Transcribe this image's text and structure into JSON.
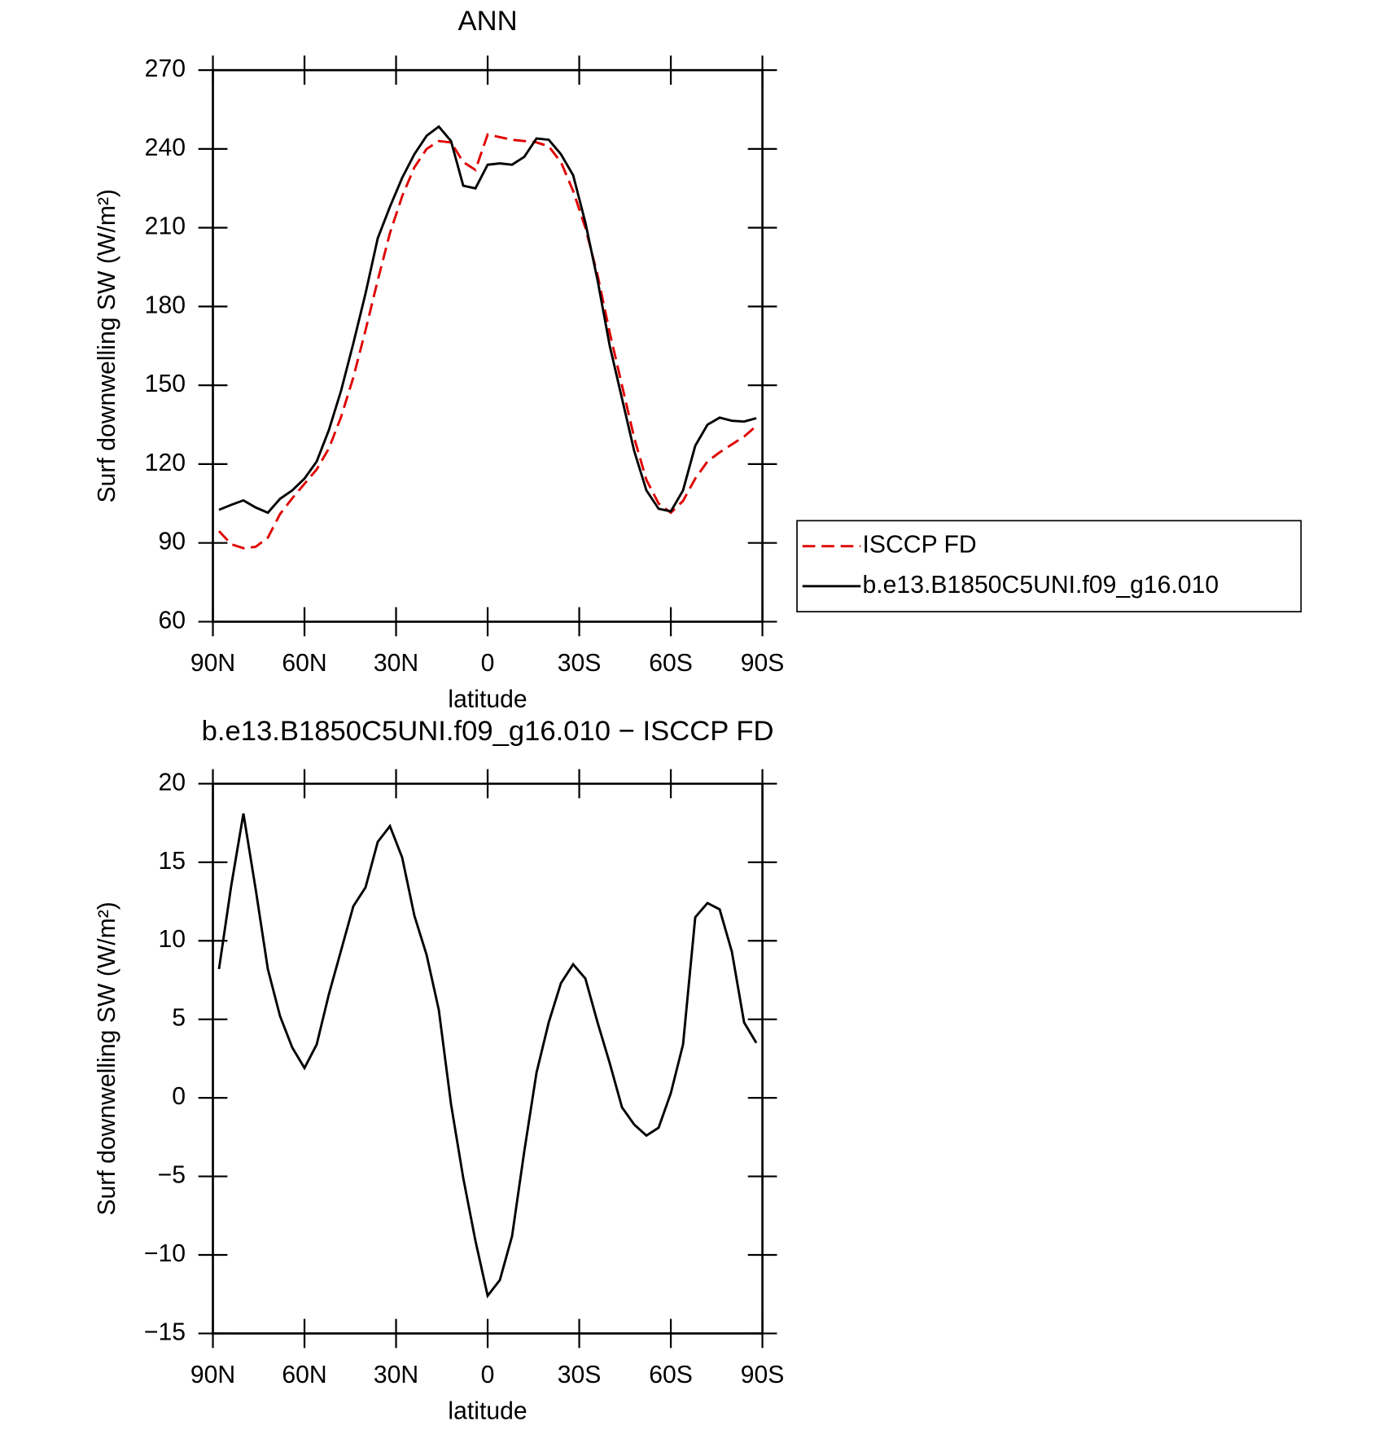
{
  "chart_data": [
    {
      "type": "line",
      "title": "ANN",
      "xlabel": "latitude",
      "ylabel": "Surf downwelling SW (W/m²)",
      "x": [
        88,
        84,
        80,
        76,
        72,
        68,
        64,
        60,
        56,
        52,
        48,
        44,
        40,
        36,
        32,
        28,
        24,
        20,
        16,
        12,
        8,
        4,
        0,
        -4,
        -8,
        -12,
        -16,
        -20,
        -24,
        -28,
        -32,
        -36,
        -40,
        -44,
        -48,
        -52,
        -56,
        -60,
        -64,
        -68,
        -72,
        -76,
        -80,
        -84,
        -88
      ],
      "series": [
        {
          "name": "ISCCP FD",
          "color": "#e00000",
          "style": "dashed",
          "values": [
            94.5,
            89.5,
            88,
            88.5,
            92,
            101,
            107,
            112.5,
            118,
            126,
            138,
            153,
            171,
            190,
            208,
            222,
            233,
            240,
            243,
            242.5,
            235,
            232,
            245.5,
            244.5,
            243.5,
            243,
            242.5,
            241,
            235,
            224,
            210,
            192,
            170,
            150,
            130,
            114,
            105,
            101.5,
            106,
            114.5,
            121,
            124.5,
            127.5,
            130.5,
            134.5
          ]
        },
        {
          "name": "b.e13.B1850C5UNI.f09_g16.010",
          "color": "#000000",
          "style": "solid",
          "values": [
            102.6,
            104.5,
            106.2,
            103.5,
            101.5,
            106.8,
            110,
            114.5,
            121,
            133,
            148,
            166,
            185,
            206,
            218,
            229,
            238,
            245,
            248.5,
            243,
            226,
            225,
            234,
            234.5,
            234,
            237,
            244,
            243.5,
            238,
            230,
            212,
            190,
            165,
            145,
            125,
            110,
            103,
            102,
            110,
            127,
            135,
            137.7,
            136.5,
            136.2,
            137.5
          ]
        }
      ],
      "xlim": [
        90,
        -90
      ],
      "xticks": [
        {
          "value": 90,
          "label": "90N"
        },
        {
          "value": 60,
          "label": "60N"
        },
        {
          "value": 30,
          "label": "30N"
        },
        0,
        {
          "value": -30,
          "label": "30S"
        },
        {
          "value": -60,
          "label": "60S"
        },
        {
          "value": -90,
          "label": "90S"
        }
      ],
      "ylim": [
        60,
        270
      ],
      "yticks": [
        60,
        90,
        120,
        150,
        180,
        210,
        240,
        270
      ],
      "legend": "right"
    },
    {
      "type": "line",
      "title": "b.e13.B1850C5UNI.f09_g16.010 − ISCCP FD",
      "xlabel": "latitude",
      "ylabel": "Surf downwelling SW (W/m²)",
      "x": [
        88,
        84,
        80,
        76,
        72,
        68,
        64,
        60,
        56,
        52,
        48,
        44,
        40,
        36,
        32,
        28,
        24,
        20,
        16,
        12,
        8,
        4,
        0,
        -4,
        -8,
        -12,
        -16,
        -20,
        -24,
        -28,
        -32,
        -36,
        -40,
        -44,
        -48,
        -52,
        -56,
        -60,
        -64,
        -68,
        -72,
        -76,
        -80,
        -84,
        -88
      ],
      "series": [
        {
          "color": "#000000",
          "style": "solid",
          "values": [
            8.2,
            13.5,
            18.1,
            13.3,
            8.2,
            5.2,
            3.2,
            1.9,
            3.4,
            6.6,
            9.4,
            12.2,
            13.4,
            16.3,
            17.3,
            15.3,
            11.6,
            9.1,
            5.6,
            -0.4,
            -5.1,
            -9.1,
            -12.6,
            -11.6,
            -8.8,
            -3.4,
            1.6,
            4.8,
            7.3,
            8.5,
            7.6,
            4.8,
            2.2,
            -0.6,
            -1.7,
            -2.4,
            -1.9,
            0.3,
            3.4,
            11.5,
            12.4,
            12,
            9.3,
            4.8,
            3.5
          ]
        }
      ],
      "xlim": [
        90,
        -90
      ],
      "xticks": [
        {
          "value": 90,
          "label": "90N"
        },
        {
          "value": 60,
          "label": "60N"
        },
        {
          "value": 30,
          "label": "30N"
        },
        0,
        {
          "value": -30,
          "label": "30S"
        },
        {
          "value": -60,
          "label": "60S"
        },
        {
          "value": -90,
          "label": "90S"
        }
      ],
      "ylim": [
        -15,
        20
      ],
      "yticks": [
        {
          "value": -15,
          "label": "−15"
        },
        {
          "value": -10,
          "label": "−10"
        },
        {
          "value": -5,
          "label": "−5"
        },
        0,
        5,
        10,
        15,
        20
      ]
    }
  ]
}
